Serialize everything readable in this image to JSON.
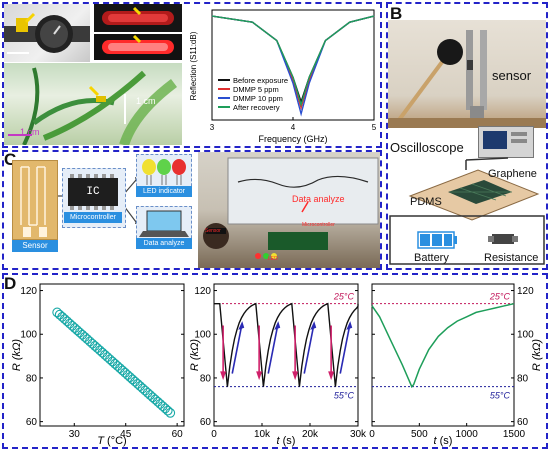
{
  "panels": {
    "a": {
      "label": "A",
      "scale_photo": "1 cm",
      "scale_plant": "1 cm",
      "chart": {
        "ylabel": "Reflection (S11:dB)",
        "xlabel": "Frequency (GHz)",
        "xticks": [
          "3",
          "4",
          "5"
        ],
        "legend": [
          "Before exposure",
          "DMMP 5 ppm",
          "DMMP 10 ppm",
          "After recovery"
        ]
      }
    },
    "b": {
      "label": "B",
      "sensor": "sensor",
      "oscilloscope": "Oscilloscope",
      "graphene": "Graphene",
      "pdms": "PDMS",
      "battery": "Battery",
      "resistance": "Resistance"
    },
    "c": {
      "label": "C",
      "chip": "IC",
      "sensor": "Sensor",
      "microcontroller": "Microcontroller",
      "led_indicator": "LED indicator",
      "data_analyze": "Data analyze",
      "photo_annotation": "Data analyze",
      "photo_label_mc": "Microcontroller",
      "photo_label_sensor": "Sensor",
      "photo_label_led": "LED"
    },
    "d": {
      "label": "D",
      "ylabel": "R (kΩ)",
      "temp_high": "25°C",
      "temp_low": "55°C"
    }
  },
  "colors": {
    "frame": "#2323c8",
    "teal": "#17a8a6",
    "black_curve": "#111111",
    "red_curve": "#e03030",
    "blue_curve": "#2a4fd0",
    "green_curve": "#1e9e5a",
    "magenta_line": "#c2185b",
    "navy_line": "#1f1f9a"
  },
  "chart_data": [
    {
      "type": "line",
      "id": "A-reflection",
      "title": "",
      "xlabel": "Frequency (GHz)",
      "ylabel": "Reflection (S11:dB)",
      "xlim": [
        3,
        5
      ],
      "x_ticks": [
        3,
        4,
        5
      ],
      "legend_position": "bottom-left",
      "series": [
        {
          "name": "Before exposure",
          "color": "#111111",
          "x": [
            3.0,
            3.5,
            3.8,
            4.0,
            4.1,
            4.2,
            4.4,
            4.7,
            5.0
          ],
          "y": [
            -2,
            -4,
            -10,
            -22,
            -30,
            -22,
            -10,
            -4,
            -2
          ]
        },
        {
          "name": "DMMP 5 ppm",
          "color": "#e03030",
          "x": [
            3.0,
            3.5,
            3.8,
            4.0,
            4.1,
            4.2,
            4.4,
            4.7,
            5.0
          ],
          "y": [
            -2,
            -4,
            -10,
            -23,
            -32,
            -23,
            -10,
            -4,
            -2
          ]
        },
        {
          "name": "DMMP 10 ppm",
          "color": "#2a4fd0",
          "x": [
            3.0,
            3.5,
            3.8,
            4.0,
            4.1,
            4.2,
            4.4,
            4.7,
            5.0
          ],
          "y": [
            -2,
            -4,
            -10,
            -24,
            -34,
            -24,
            -10,
            -4,
            -2
          ]
        },
        {
          "name": "After recovery",
          "color": "#1e9e5a",
          "x": [
            3.0,
            3.5,
            3.8,
            4.0,
            4.1,
            4.2,
            4.4,
            4.7,
            5.0
          ],
          "y": [
            -2,
            -4,
            -10,
            -22,
            -31,
            -22,
            -10,
            -4,
            -2
          ]
        }
      ]
    },
    {
      "type": "scatter",
      "id": "D1",
      "xlabel": "T (°C)",
      "ylabel": "R (kΩ)",
      "xlim": [
        20,
        62
      ],
      "ylim": [
        58,
        123
      ],
      "x_ticks": [
        30,
        45,
        60
      ],
      "y_ticks": [
        60,
        80,
        100,
        120
      ],
      "marker": "open-circle",
      "color": "#17a8a6",
      "x_range": [
        25,
        58
      ],
      "y_range": [
        110,
        64
      ],
      "points": 46
    },
    {
      "type": "line",
      "id": "D2",
      "xlabel": "t (s)",
      "ylabel": "R (kΩ)",
      "xlim": [
        0,
        30000
      ],
      "ylim": [
        58,
        123
      ],
      "x_ticks": [
        "0",
        "10k",
        "20k",
        "30k"
      ],
      "y_ticks": [
        60,
        80,
        100,
        120
      ],
      "ref_lines": [
        {
          "y": 114,
          "label": "25°C"
        },
        {
          "y": 76,
          "label": "55°C"
        }
      ],
      "cycles": 4
    },
    {
      "type": "line",
      "id": "D3",
      "xlabel": "t (s)",
      "ylabel": "R (kΩ)",
      "xlim": [
        0,
        1500
      ],
      "ylim": [
        58,
        123
      ],
      "x_ticks": [
        0,
        500,
        1000,
        1500
      ],
      "y_ticks": [
        60,
        80,
        100,
        120
      ],
      "ref_lines": [
        {
          "y": 114,
          "label": "25°C"
        },
        {
          "y": 76,
          "label": "55°C"
        }
      ],
      "x": [
        0,
        80,
        200,
        320,
        420,
        440,
        500,
        600,
        700,
        800,
        900,
        1000,
        1100,
        1200,
        1300,
        1400,
        1500
      ],
      "y": [
        113,
        108,
        97,
        86,
        76,
        77,
        84,
        93,
        99,
        103,
        106,
        108,
        110,
        111,
        112,
        113,
        114
      ]
    }
  ]
}
